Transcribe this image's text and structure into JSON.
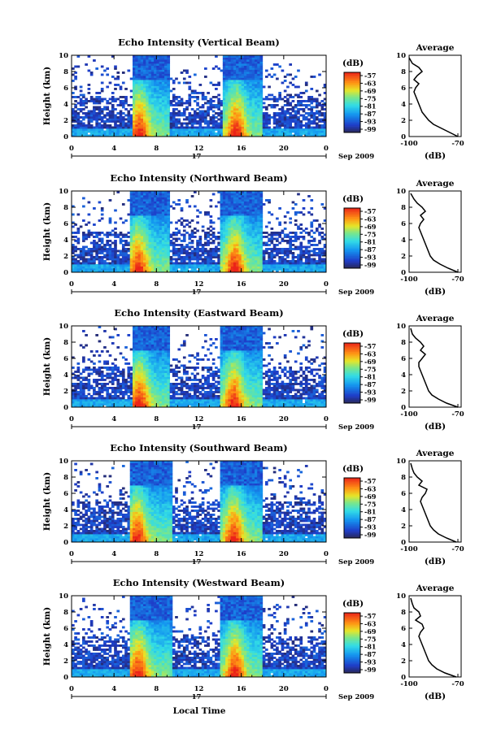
{
  "figure": {
    "xlabel": "Local Time",
    "date_label": "17",
    "month_year": "Sep 2009"
  },
  "chart_data": [
    {
      "type": "heatmap",
      "title": "Echo Intensity (Vertical Beam)",
      "xlabel": "",
      "ylabel": "Height (km)",
      "xlim": [
        0,
        24
      ],
      "ylim": [
        0,
        10
      ],
      "xticks": [
        "0",
        "4",
        "8",
        "12",
        "16",
        "20",
        "0"
      ],
      "yticks": [
        "0",
        "2",
        "4",
        "6",
        "8",
        "10"
      ],
      "colorbar": {
        "label": "(dB)",
        "ticks": [
          "-57",
          "-63",
          "-69",
          "-75",
          "-81",
          "-87",
          "-93",
          "-99"
        ]
      },
      "storms": [
        {
          "x0": 5.8,
          "x1": 9.2,
          "peak_x": 6.4,
          "top": 10
        },
        {
          "x0": 14.2,
          "x1": 18.1,
          "peak_x": 15.5,
          "top": 10
        }
      ]
    },
    {
      "type": "heatmap",
      "title": "Echo Intensity (Northward Beam)",
      "xlabel": "",
      "ylabel": "Height (km)",
      "xlim": [
        0,
        24
      ],
      "ylim": [
        0,
        10
      ],
      "xticks": [
        "0",
        "4",
        "8",
        "12",
        "16",
        "20",
        "0"
      ],
      "yticks": [
        "0",
        "2",
        "4",
        "6",
        "8",
        "10"
      ],
      "colorbar": {
        "label": "(dB)",
        "ticks": [
          "-57",
          "-63",
          "-69",
          "-75",
          "-81",
          "-87",
          "-93",
          "-99"
        ]
      },
      "storms": [
        {
          "x0": 5.6,
          "x1": 9.3,
          "peak_x": 6.3,
          "top": 10
        },
        {
          "x0": 14.0,
          "x1": 18.0,
          "peak_x": 15.4,
          "top": 10
        }
      ]
    },
    {
      "type": "heatmap",
      "title": "Echo Intensity (Eastward Beam)",
      "xlabel": "",
      "ylabel": "Height (km)",
      "xlim": [
        0,
        24
      ],
      "ylim": [
        0,
        10
      ],
      "xticks": [
        "0",
        "4",
        "8",
        "12",
        "16",
        "20",
        "0"
      ],
      "yticks": [
        "0",
        "2",
        "4",
        "6",
        "8",
        "10"
      ],
      "colorbar": {
        "label": "(dB)",
        "ticks": [
          "-57",
          "-63",
          "-69",
          "-75",
          "-81",
          "-87",
          "-93",
          "-99"
        ]
      },
      "storms": [
        {
          "x0": 5.7,
          "x1": 9.3,
          "peak_x": 6.4,
          "top": 10
        },
        {
          "x0": 14.0,
          "x1": 18.0,
          "peak_x": 15.3,
          "top": 10
        }
      ]
    },
    {
      "type": "heatmap",
      "title": "Echo Intensity (Southward Beam)",
      "xlabel": "",
      "ylabel": "Height (km)",
      "xlim": [
        0,
        24
      ],
      "ylim": [
        0,
        10
      ],
      "xticks": [
        "0",
        "4",
        "8",
        "12",
        "16",
        "20",
        "0"
      ],
      "yticks": [
        "0",
        "2",
        "4",
        "6",
        "8",
        "10"
      ],
      "colorbar": {
        "label": "(dB)",
        "ticks": [
          "-57",
          "-63",
          "-69",
          "-75",
          "-81",
          "-87",
          "-93",
          "-99"
        ]
      },
      "storms": [
        {
          "x0": 5.5,
          "x1": 9.4,
          "peak_x": 6.2,
          "top": 10
        },
        {
          "x0": 14.0,
          "x1": 18.1,
          "peak_x": 15.3,
          "top": 10
        }
      ]
    },
    {
      "type": "heatmap",
      "title": "Echo Intensity (Westward Beam)",
      "xlabel": "",
      "ylabel": "Height (km)",
      "xlim": [
        0,
        24
      ],
      "ylim": [
        0,
        10
      ],
      "xticks": [
        "0",
        "4",
        "8",
        "12",
        "16",
        "20",
        "0"
      ],
      "yticks": [
        "0",
        "2",
        "4",
        "6",
        "8",
        "10"
      ],
      "colorbar": {
        "label": "(dB)",
        "ticks": [
          "-57",
          "-63",
          "-69",
          "-75",
          "-81",
          "-87",
          "-93",
          "-99"
        ]
      },
      "storms": [
        {
          "x0": 5.6,
          "x1": 9.4,
          "peak_x": 6.3,
          "top": 10
        },
        {
          "x0": 14.0,
          "x1": 18.0,
          "peak_x": 15.4,
          "top": 10
        }
      ]
    },
    {
      "type": "line",
      "title": "Average",
      "xlabel": "(dB)",
      "ylabel": "",
      "xlim": [
        -100,
        -68
      ],
      "ylim": [
        0,
        10
      ],
      "xticks": [
        "-100",
        "-70"
      ],
      "yticks": [
        "0",
        "2",
        "4",
        "6",
        "8",
        "10"
      ],
      "series": [
        {
          "x": [
            -70,
            -75,
            -80,
            -85,
            -88,
            -90,
            -92,
            -93,
            -94,
            -95,
            -96,
            -97,
            -96,
            -94,
            -97,
            -95,
            -92,
            -94,
            -98,
            -100
          ],
          "y": [
            0,
            0.5,
            1,
            1.5,
            2,
            2.5,
            3,
            3.5,
            4,
            4.5,
            5,
            5.5,
            6,
            6.5,
            7,
            7.5,
            8,
            8.5,
            9,
            9.7
          ]
        }
      ]
    },
    {
      "type": "line",
      "title": "Average",
      "xlabel": "(dB)",
      "ylabel": "",
      "xlim": [
        -100,
        -68
      ],
      "ylim": [
        0,
        10
      ],
      "xticks": [
        "-100",
        "-70"
      ],
      "yticks": [
        "0",
        "2",
        "4",
        "6",
        "8",
        "10"
      ],
      "series": [
        {
          "x": [
            -70,
            -76,
            -81,
            -85,
            -87,
            -88,
            -89,
            -90,
            -91,
            -92,
            -93,
            -94,
            -93,
            -91,
            -93,
            -90,
            -92,
            -95,
            -97,
            -99
          ],
          "y": [
            0,
            0.5,
            1,
            1.5,
            2,
            2.5,
            3,
            3.5,
            4,
            4.5,
            5,
            5.5,
            6,
            6.5,
            7,
            7.5,
            8,
            8.5,
            9,
            9.7
          ]
        }
      ]
    },
    {
      "type": "line",
      "title": "Average",
      "xlabel": "(dB)",
      "ylabel": "",
      "xlim": [
        -100,
        -68
      ],
      "ylim": [
        0,
        10
      ],
      "xticks": [
        "-100",
        "-70"
      ],
      "yticks": [
        "0",
        "2",
        "4",
        "6",
        "8",
        "10"
      ],
      "series": [
        {
          "x": [
            -70,
            -77,
            -82,
            -86,
            -88,
            -89,
            -90,
            -91,
            -92,
            -93,
            -94,
            -94,
            -92,
            -90,
            -93,
            -91,
            -93,
            -96,
            -98,
            -99
          ],
          "y": [
            0,
            0.5,
            1,
            1.5,
            2,
            2.5,
            3,
            3.5,
            4,
            4.5,
            5,
            5.5,
            6,
            6.5,
            7,
            7.5,
            8,
            8.5,
            9,
            9.7
          ]
        }
      ]
    },
    {
      "type": "line",
      "title": "Average",
      "xlabel": "(dB)",
      "ylabel": "",
      "xlim": [
        -100,
        -68
      ],
      "ylim": [
        0,
        10
      ],
      "xticks": [
        "-100",
        "-70"
      ],
      "yticks": [
        "0",
        "2",
        "4",
        "6",
        "8",
        "10"
      ],
      "series": [
        {
          "x": [
            -71,
            -77,
            -82,
            -85,
            -87,
            -88,
            -89,
            -90,
            -91,
            -92,
            -93,
            -92,
            -90,
            -89,
            -94,
            -92,
            -95,
            -97,
            -98,
            -99
          ],
          "y": [
            0,
            0.5,
            1,
            1.5,
            2,
            2.5,
            3,
            3.5,
            4,
            4.5,
            5,
            5.5,
            6,
            6.5,
            7,
            7.5,
            8,
            8.5,
            9,
            9.7
          ]
        }
      ]
    },
    {
      "type": "line",
      "title": "Average",
      "xlabel": "(dB)",
      "ylabel": "",
      "xlim": [
        -100,
        -68
      ],
      "ylim": [
        0,
        10
      ],
      "xticks": [
        "-100",
        "-70"
      ],
      "yticks": [
        "0",
        "2",
        "4",
        "6",
        "8",
        "10"
      ],
      "series": [
        {
          "x": [
            -71,
            -78,
            -83,
            -86,
            -88,
            -89,
            -90,
            -91,
            -92,
            -93,
            -94,
            -93,
            -91,
            -92,
            -96,
            -93,
            -94,
            -97,
            -98,
            -99
          ],
          "y": [
            0,
            0.5,
            1,
            1.5,
            2,
            2.5,
            3,
            3.5,
            4,
            4.5,
            5,
            5.5,
            6,
            6.5,
            7,
            7.5,
            8,
            8.5,
            9,
            9.7
          ]
        }
      ]
    }
  ]
}
